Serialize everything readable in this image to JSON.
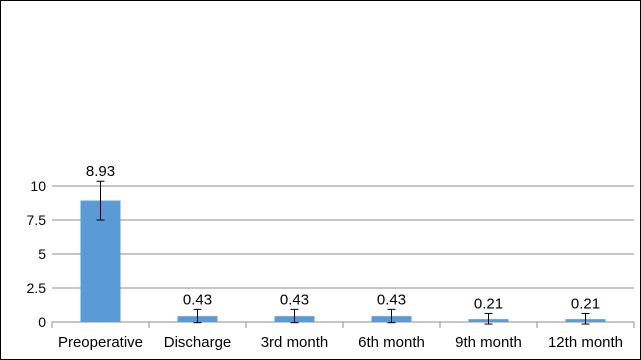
{
  "chart_data": {
    "type": "bar",
    "categories": [
      "Preoperative",
      "Discharge",
      "3rd month",
      "6th month",
      "9th month",
      "12th month"
    ],
    "series": [
      {
        "values": [
          8.93,
          0.43,
          0.43,
          0.43,
          0.21,
          0.21
        ],
        "error_low": [
          7.5,
          -0.05,
          -0.05,
          -0.05,
          -0.15,
          -0.15
        ],
        "error_high": [
          10.35,
          0.93,
          0.93,
          0.93,
          0.63,
          0.63
        ],
        "data_labels": [
          "8.93",
          "0.43",
          "0.43",
          "0.43",
          "0.21",
          "0.21"
        ]
      }
    ],
    "y_ticks": [
      0,
      2.5,
      5,
      7.5,
      10
    ],
    "y_tick_labels": [
      "0",
      "2.5",
      "5",
      "7.5",
      "10"
    ],
    "ylim": [
      0,
      10
    ],
    "title": "",
    "xlabel": "",
    "ylabel": "",
    "grid": "horizontal",
    "legend": "none",
    "colors": {
      "bar": "#5b9bd5",
      "grid": "#8c8c8c",
      "axis": "#8c8c8c",
      "error_bar": "#000000"
    }
  }
}
